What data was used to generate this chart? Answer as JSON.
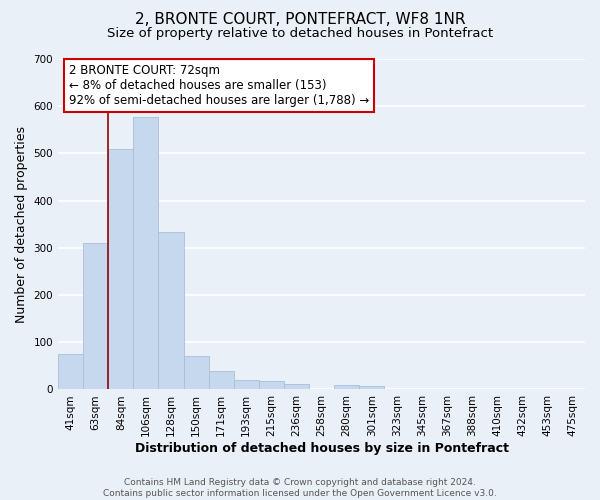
{
  "title": "2, BRONTE COURT, PONTEFRACT, WF8 1NR",
  "subtitle": "Size of property relative to detached houses in Pontefract",
  "xlabel": "Distribution of detached houses by size in Pontefract",
  "ylabel": "Number of detached properties",
  "bar_labels": [
    "41sqm",
    "63sqm",
    "84sqm",
    "106sqm",
    "128sqm",
    "150sqm",
    "171sqm",
    "193sqm",
    "215sqm",
    "236sqm",
    "258sqm",
    "280sqm",
    "301sqm",
    "323sqm",
    "345sqm",
    "367sqm",
    "388sqm",
    "410sqm",
    "432sqm",
    "453sqm",
    "475sqm"
  ],
  "bar_values": [
    75,
    310,
    510,
    578,
    333,
    70,
    40,
    20,
    18,
    12,
    0,
    10,
    8,
    0,
    0,
    0,
    0,
    0,
    0,
    0,
    0
  ],
  "bar_color": "#c5d8ed",
  "bar_edge_color": "#aabfd8",
  "ylim": [
    0,
    700
  ],
  "yticks": [
    0,
    100,
    200,
    300,
    400,
    500,
    600,
    700
  ],
  "annotation_title": "2 BRONTE COURT: 72sqm",
  "annotation_line1": "← 8% of detached houses are smaller (153)",
  "annotation_line2": "92% of semi-detached houses are larger (1,788) →",
  "annotation_box_facecolor": "#ffffff",
  "annotation_box_edgecolor": "#cc0000",
  "property_line_color": "#990000",
  "footer_line1": "Contains HM Land Registry data © Crown copyright and database right 2024.",
  "footer_line2": "Contains public sector information licensed under the Open Government Licence v3.0.",
  "background_color": "#eaf0f8",
  "grid_color": "#ffffff",
  "title_fontsize": 11,
  "subtitle_fontsize": 9.5,
  "ylabel_fontsize": 9,
  "xlabel_fontsize": 9,
  "annotation_fontsize": 8.5,
  "tick_fontsize": 7.5,
  "footer_fontsize": 6.5
}
